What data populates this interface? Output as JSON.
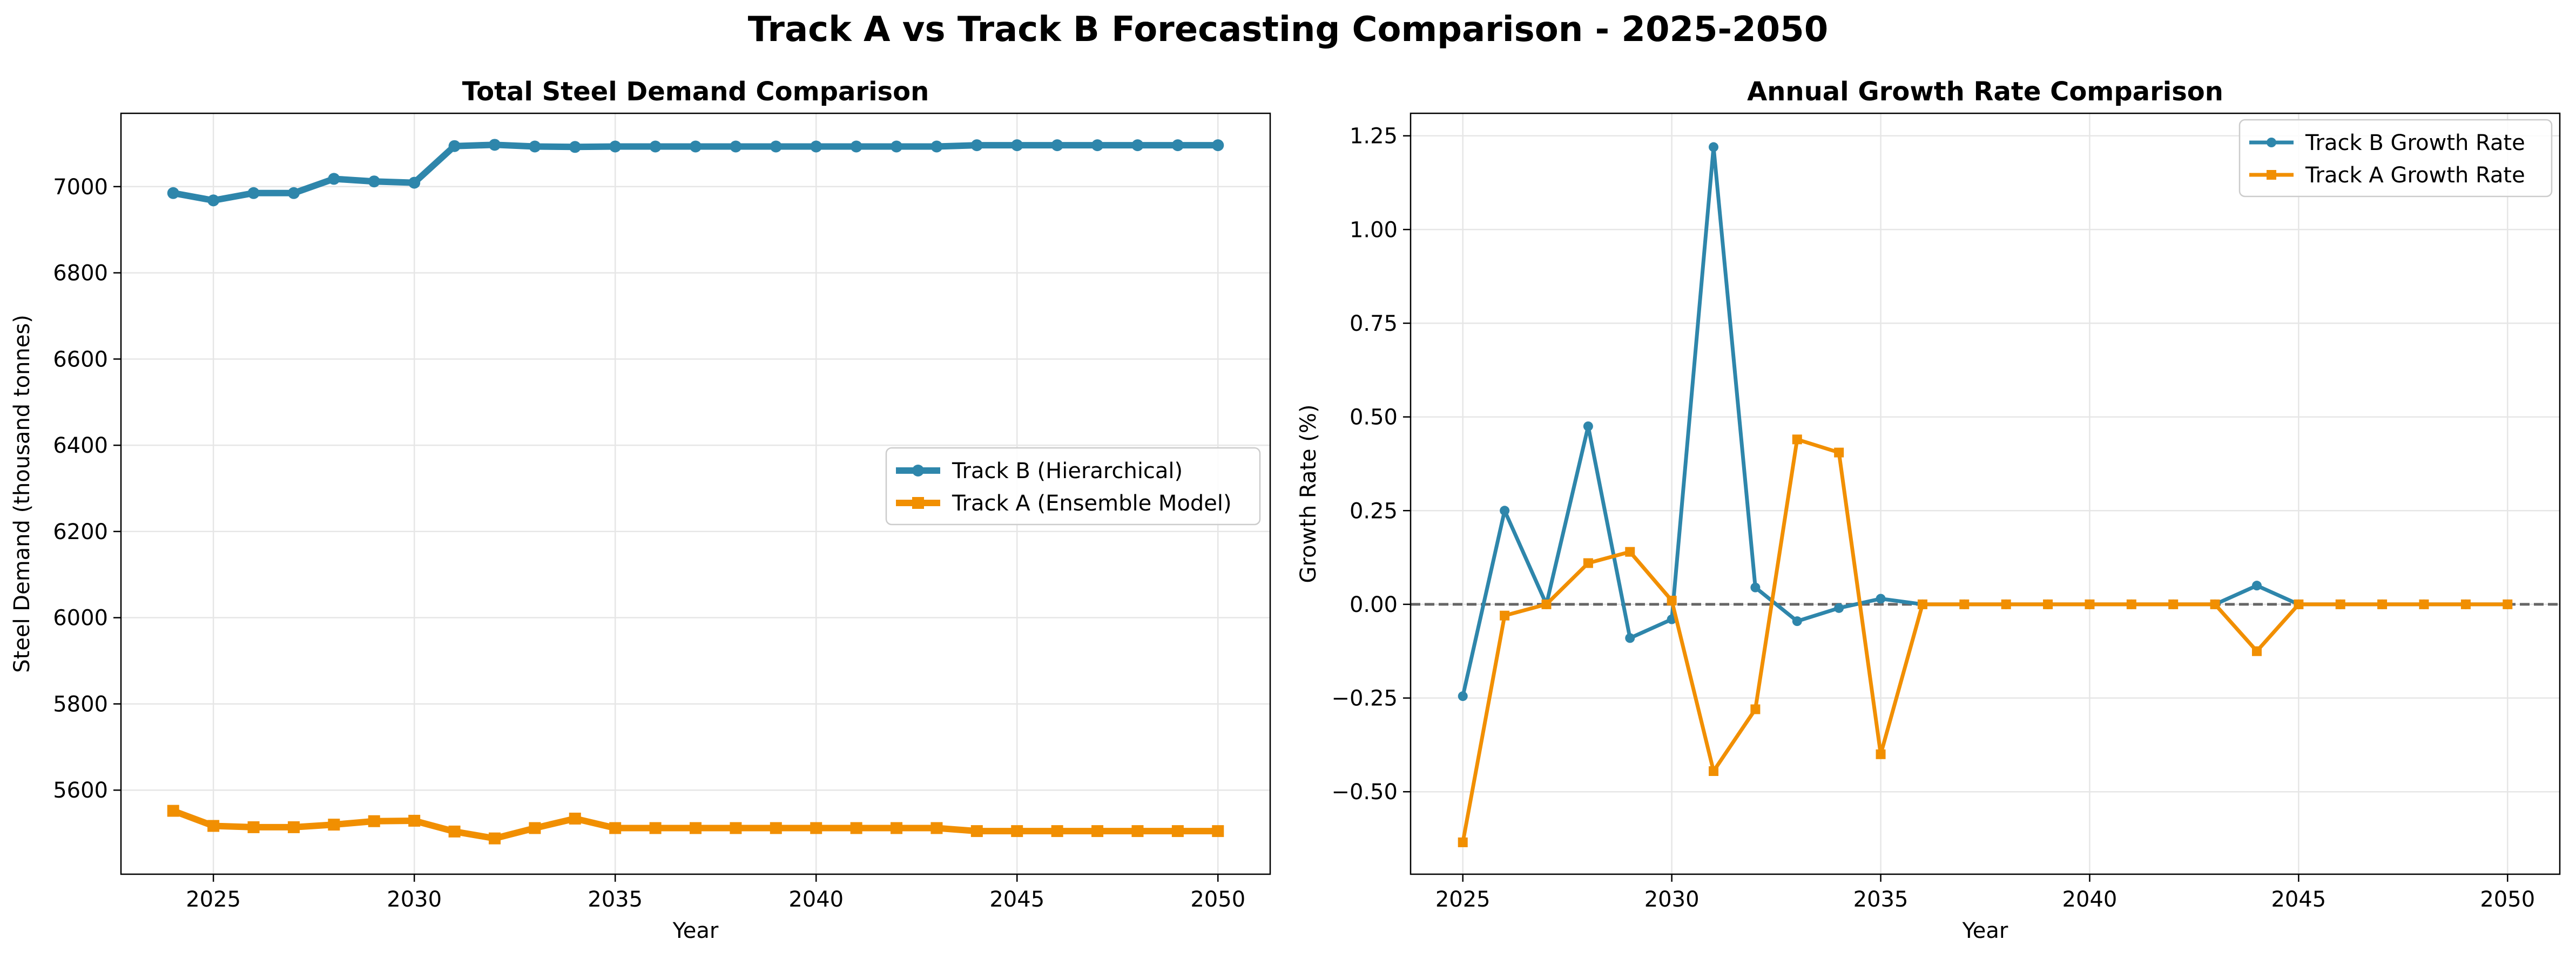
{
  "suptitle": "Track A vs Track B Forecasting Comparison - 2025-2050",
  "colors": {
    "track_b": "#2E86AB",
    "track_a": "#F18F01",
    "zero_line": "#666666",
    "grid": "#e6e6e6"
  },
  "chart_data": [
    {
      "type": "line",
      "title": "Total Steel Demand Comparison",
      "xlabel": "Year",
      "ylabel": "Steel Demand (thousand tonnes)",
      "xlim": [
        2022.7,
        2051.3
      ],
      "ylim": [
        5405,
        7170
      ],
      "xticks": [
        2025,
        2030,
        2035,
        2040,
        2045,
        2050
      ],
      "yticks": [
        5600,
        5800,
        6000,
        6200,
        6400,
        6600,
        6800,
        7000
      ],
      "grid": true,
      "legend": "center-right",
      "x": [
        2024,
        2025,
        2026,
        2027,
        2028,
        2029,
        2030,
        2031,
        2032,
        2033,
        2034,
        2035,
        2036,
        2037,
        2038,
        2039,
        2040,
        2041,
        2042,
        2043,
        2044,
        2045,
        2046,
        2047,
        2048,
        2049,
        2050
      ],
      "series": [
        {
          "name": "Track B (Hierarchical)",
          "color": "#2E86AB",
          "marker": "circle",
          "values": [
            6985,
            6968,
            6985,
            6985,
            7018,
            7012,
            7009,
            7094,
            7097,
            7093,
            7092,
            7093,
            7093,
            7093,
            7093,
            7093,
            7093,
            7093,
            7093,
            7093,
            7096,
            7096,
            7096,
            7096,
            7096,
            7096,
            7096
          ]
        },
        {
          "name": "Track A (Ensemble Model)",
          "color": "#F18F01",
          "marker": "square",
          "values": [
            5552,
            5517,
            5514,
            5514,
            5520,
            5528,
            5529,
            5504,
            5488,
            5512,
            5534,
            5512,
            5512,
            5512,
            5512,
            5512,
            5512,
            5512,
            5512,
            5512,
            5505,
            5505,
            5505,
            5505,
            5505,
            5505,
            5505
          ]
        }
      ]
    },
    {
      "type": "line",
      "title": "Annual Growth Rate Comparison",
      "xlabel": "Year",
      "ylabel": "Growth Rate (%)",
      "xlim": [
        2023.75,
        2051.25
      ],
      "ylim": [
        -0.72,
        1.31
      ],
      "xticks": [
        2025,
        2030,
        2035,
        2040,
        2045,
        2050
      ],
      "yticks": [
        -0.5,
        -0.25,
        0.0,
        0.25,
        0.5,
        0.75,
        1.0,
        1.25
      ],
      "ytick_labels": [
        "−0.50",
        "−0.25",
        "0.00",
        "0.25",
        "0.50",
        "0.75",
        "1.00",
        "1.25"
      ],
      "grid": true,
      "legend": "top-right",
      "reference_line": 0,
      "x": [
        2025,
        2026,
        2027,
        2028,
        2029,
        2030,
        2031,
        2032,
        2033,
        2034,
        2035,
        2036,
        2037,
        2038,
        2039,
        2040,
        2041,
        2042,
        2043,
        2044,
        2045,
        2046,
        2047,
        2048,
        2049,
        2050
      ],
      "series": [
        {
          "name": "Track B Growth Rate",
          "color": "#2E86AB",
          "marker": "circle",
          "values": [
            -0.245,
            0.25,
            0.0,
            0.475,
            -0.09,
            -0.04,
            1.22,
            0.045,
            -0.045,
            -0.01,
            0.015,
            0.0,
            0.0,
            0.0,
            0.0,
            0.0,
            0.0,
            0.0,
            0.0,
            0.05,
            0.0,
            0.0,
            0.0,
            0.0,
            0.0,
            0.0
          ]
        },
        {
          "name": "Track A Growth Rate",
          "color": "#F18F01",
          "marker": "square",
          "values": [
            -0.635,
            -0.03,
            0.0,
            0.11,
            0.14,
            0.01,
            -0.445,
            -0.28,
            0.44,
            0.405,
            -0.4,
            0.0,
            0.0,
            0.0,
            0.0,
            0.0,
            0.0,
            0.0,
            0.0,
            -0.125,
            0.0,
            0.0,
            0.0,
            0.0,
            0.0,
            0.0
          ]
        }
      ]
    }
  ]
}
